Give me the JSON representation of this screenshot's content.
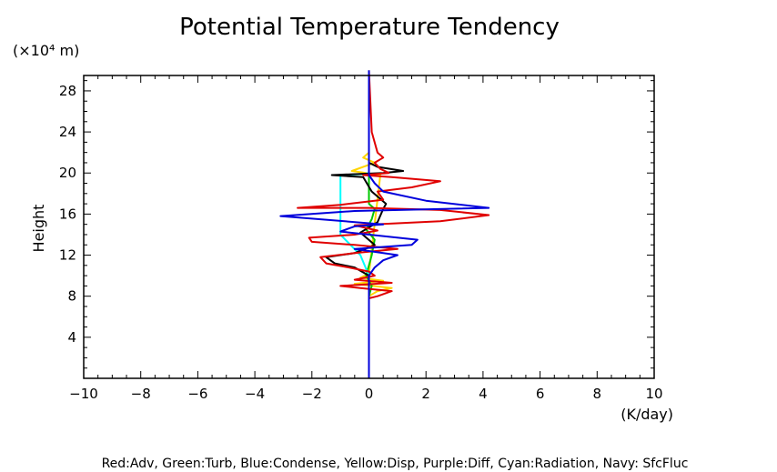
{
  "chart_data": {
    "type": "line",
    "title": "Potential Temperature Tendency",
    "ylabel": "Height",
    "yunit": "(×10⁴ m)",
    "xunit": "(K/day)",
    "xlim": [
      -10,
      10
    ],
    "ylim": [
      0,
      29.5
    ],
    "xticks": [
      "−10",
      "−8",
      "−6",
      "−4",
      "−2",
      "0",
      "2",
      "4",
      "6",
      "8",
      "10"
    ],
    "xtick_values": [
      -10,
      -8,
      -6,
      -4,
      -2,
      0,
      2,
      4,
      6,
      8,
      10
    ],
    "yticks": [
      "4",
      "8",
      "12",
      "16",
      "20",
      "24",
      "28"
    ],
    "ytick_values": [
      4,
      8,
      12,
      16,
      20,
      24,
      28
    ],
    "grid": false,
    "legend_text": "Red:Adv, Green:Turb, Blue:Condense, Yellow:Disp, Purple:Diff, Cyan:Radiation, Navy: SfcFluc",
    "series": [
      {
        "color": "#ffd500",
        "points": [
          [
            0,
            8
          ],
          [
            0.3,
            8.5
          ],
          [
            0.8,
            8.8
          ],
          [
            -0.5,
            9.2
          ],
          [
            0.5,
            9.5
          ],
          [
            -0.3,
            9.8
          ],
          [
            0,
            10.2
          ],
          [
            0.4,
            19.8
          ],
          [
            -0.6,
            20.2
          ],
          [
            0.2,
            21
          ],
          [
            -0.2,
            21.5
          ],
          [
            0,
            22
          ]
        ]
      },
      {
        "color": "#00c800",
        "points": [
          [
            0,
            8
          ],
          [
            0.1,
            9
          ],
          [
            -0.1,
            10
          ],
          [
            0.1,
            12
          ],
          [
            0.2,
            13.5
          ],
          [
            -0.1,
            14.5
          ],
          [
            0.1,
            15.5
          ],
          [
            0.2,
            16.5
          ],
          [
            0,
            17
          ],
          [
            0,
            20
          ]
        ]
      },
      {
        "color": "#00ffff",
        "points": [
          [
            0,
            10
          ],
          [
            -0.3,
            12
          ],
          [
            -1.0,
            14
          ],
          [
            -1.0,
            18
          ],
          [
            -1.0,
            19.8
          ],
          [
            -0.2,
            19.9
          ],
          [
            0,
            20
          ]
        ]
      },
      {
        "color": "#000000",
        "points": [
          [
            0,
            0
          ],
          [
            0,
            10
          ],
          [
            -0.5,
            10.8
          ],
          [
            -1.2,
            11.2
          ],
          [
            -1.5,
            11.8
          ],
          [
            -0.5,
            12.2
          ],
          [
            0.2,
            13
          ],
          [
            -0.3,
            14.2
          ],
          [
            0.3,
            15.2
          ],
          [
            0.5,
            16.5
          ],
          [
            0.6,
            17
          ],
          [
            0.1,
            18.2
          ],
          [
            -0.2,
            19.6
          ],
          [
            -1.3,
            19.8
          ],
          [
            0.5,
            20
          ],
          [
            1.2,
            20.2
          ],
          [
            0.3,
            20.6
          ],
          [
            0,
            21
          ],
          [
            0,
            30
          ]
        ]
      },
      {
        "color": "#e00000",
        "points": [
          [
            0,
            0
          ],
          [
            0,
            7.8
          ],
          [
            0.3,
            8
          ],
          [
            0.8,
            8.5
          ],
          [
            -0.3,
            8.8
          ],
          [
            -1,
            9
          ],
          [
            0.8,
            9.3
          ],
          [
            -0.5,
            9.6
          ],
          [
            0.2,
            10
          ],
          [
            0,
            10.4
          ],
          [
            -0.7,
            10.8
          ],
          [
            -1.5,
            11.2
          ],
          [
            -1.7,
            11.8
          ],
          [
            -0.5,
            12.2
          ],
          [
            1.0,
            12.6
          ],
          [
            -0.5,
            13
          ],
          [
            -2.0,
            13.3
          ],
          [
            -2.1,
            13.7
          ],
          [
            -0.5,
            14
          ],
          [
            0.3,
            14.4
          ],
          [
            -0.5,
            14.9
          ],
          [
            2.5,
            15.3
          ],
          [
            4.2,
            15.9
          ],
          [
            2.5,
            16.4
          ],
          [
            0,
            16.6
          ],
          [
            -2.5,
            16.6
          ],
          [
            -1,
            16.9
          ],
          [
            0.5,
            17.4
          ],
          [
            0.3,
            18.2
          ],
          [
            1.5,
            18.6
          ],
          [
            2.5,
            19.2
          ],
          [
            0.8,
            19.6
          ],
          [
            -0.2,
            19.8
          ],
          [
            0.7,
            20
          ],
          [
            0.4,
            20.4
          ],
          [
            0.2,
            21
          ],
          [
            0.5,
            21.5
          ],
          [
            0.3,
            22
          ],
          [
            0.1,
            24
          ],
          [
            0,
            30
          ]
        ]
      },
      {
        "color": "#0000dc",
        "points": [
          [
            0,
            0
          ],
          [
            0,
            10
          ],
          [
            0.2,
            10.8
          ],
          [
            0.5,
            11.5
          ],
          [
            1.0,
            12
          ],
          [
            -0.5,
            12.6
          ],
          [
            1.5,
            13
          ],
          [
            1.7,
            13.5
          ],
          [
            -1,
            14.3
          ],
          [
            -0.5,
            14.8
          ],
          [
            0.5,
            15
          ],
          [
            -3.1,
            15.8
          ],
          [
            -0.5,
            16.3
          ],
          [
            4.2,
            16.6
          ],
          [
            2.0,
            17.3
          ],
          [
            0.5,
            18.2
          ],
          [
            0.2,
            19
          ],
          [
            0,
            19.8
          ],
          [
            0,
            30
          ]
        ]
      }
    ]
  }
}
